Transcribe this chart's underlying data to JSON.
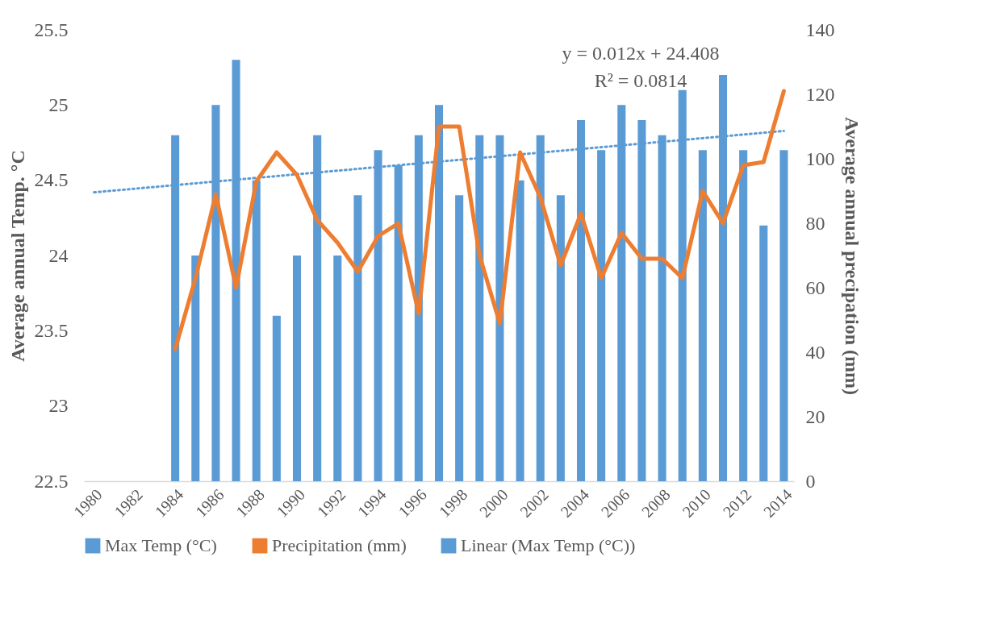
{
  "chart_data": {
    "type": "bar",
    "ylabel": "Average annual Temp. °C",
    "y2label": "Average annual precipation (mm)",
    "categories": [
      "1980",
      null,
      "1982",
      null,
      "1984",
      null,
      "1986",
      null,
      "1988",
      null,
      "1990",
      null,
      "1992",
      null,
      "1994",
      null,
      "1996",
      null,
      "1998",
      null,
      "2000",
      null,
      "2002",
      null,
      "2004",
      null,
      "2006",
      null,
      "2008",
      null,
      "2010",
      null,
      "2012",
      null,
      "2014"
    ],
    "series": [
      {
        "name": "Max Temp (°C)",
        "color": "#5b9bd5",
        "values": [
          null,
          null,
          null,
          null,
          24.8,
          24.0,
          25.0,
          25.3,
          24.5,
          23.6,
          24.0,
          24.8,
          24.0,
          24.4,
          24.7,
          24.6,
          24.8,
          25.0,
          24.4,
          24.8,
          24.8,
          24.5,
          24.8,
          24.4,
          24.9,
          24.7,
          25.0,
          24.9,
          24.8,
          25.1,
          24.7,
          25.2,
          24.7,
          24.2,
          24.7
        ]
      },
      {
        "name": "Precipitation (mm)",
        "type": "line",
        "axis": "y2",
        "color": "#ed7d31",
        "line_style": "solid",
        "values": [
          null,
          null,
          null,
          null,
          41,
          63,
          89,
          60,
          93,
          102,
          95,
          81,
          74,
          65,
          76,
          80,
          52,
          110,
          110,
          70,
          49,
          102,
          88,
          67,
          83,
          63,
          77,
          69,
          69,
          63,
          90,
          80,
          98,
          99,
          121
        ]
      },
      {
        "name": "Linear (Max Temp (°C))",
        "type": "line",
        "color": "#5b9bd5",
        "line_style": "dotted",
        "values": [
          24.42,
          24.432,
          24.444,
          24.456,
          24.468,
          24.48,
          24.492,
          24.504,
          24.516,
          24.528,
          24.54,
          24.552,
          24.564,
          24.576,
          24.588,
          24.6,
          24.612,
          24.624,
          24.636,
          24.648,
          24.66,
          24.672,
          24.684,
          24.696,
          24.708,
          24.72,
          24.732,
          24.744,
          24.756,
          24.768,
          24.78,
          24.792,
          24.804,
          24.816,
          24.828
        ]
      }
    ],
    "ylim": [
      22.5,
      25.5
    ],
    "yticks": [
      22.5,
      23,
      23.5,
      24,
      24.5,
      25,
      25.5
    ],
    "y2lim": [
      0,
      140
    ],
    "y2ticks": [
      0,
      20,
      40,
      60,
      80,
      100,
      120,
      140
    ],
    "annotations": [
      "y = 0.012x + 24.408",
      "R² = 0.0814"
    ],
    "grid": false,
    "legend": "bottom",
    "marker": "none"
  }
}
